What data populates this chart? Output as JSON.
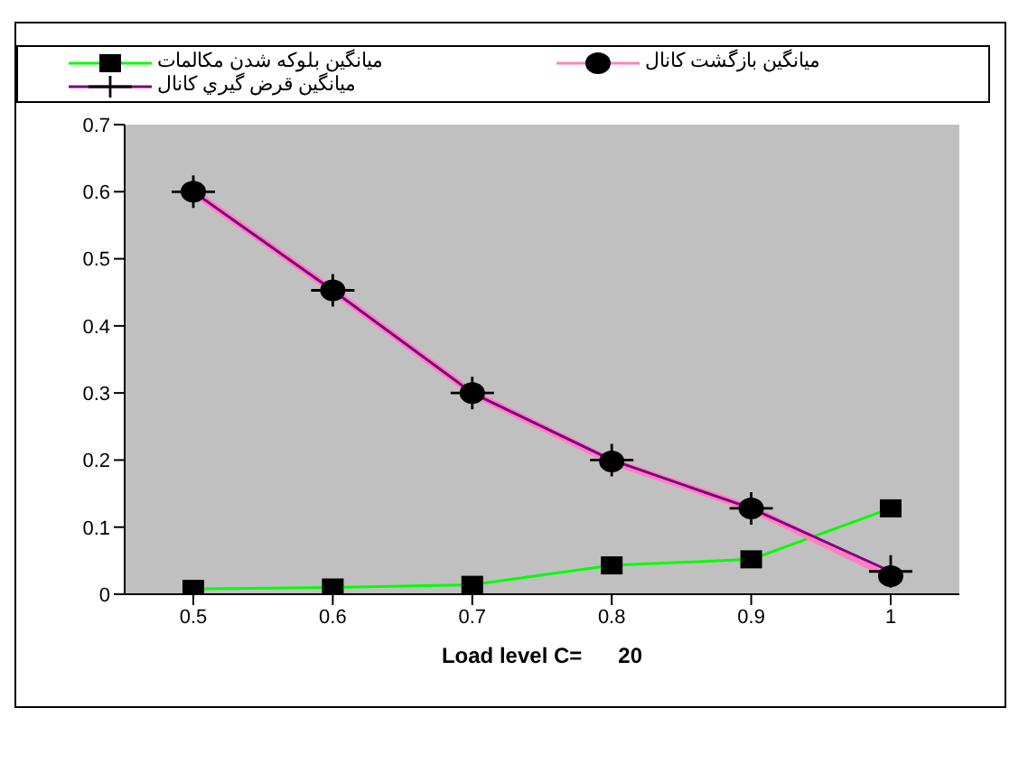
{
  "chart_data": {
    "type": "line",
    "xlabel": "Load level C=      20",
    "categories": [
      "0.5",
      "0.6",
      "0.7",
      "0.8",
      "0.9",
      "1"
    ],
    "series": [
      {
        "name": "میانگین بلوکه شدن مکالمات",
        "color": "#00ff00",
        "marker": "square",
        "values": [
          0.008,
          0.01,
          0.014,
          0.043,
          0.052,
          0.128
        ]
      },
      {
        "name": "میانگین بازگشت کانال",
        "color": "#ff80c0",
        "marker": "circle",
        "values": [
          0.6,
          0.453,
          0.3,
          0.198,
          0.128,
          0.027
        ]
      },
      {
        "name": "میانگین قرض گیري کانال",
        "color": "#800080",
        "marker": "cross",
        "values": [
          0.6,
          0.453,
          0.3,
          0.2,
          0.128,
          0.034
        ]
      }
    ],
    "ylim": [
      0,
      0.7
    ],
    "yticks": [
      0,
      0.1,
      0.2,
      0.3,
      0.4,
      0.5,
      0.6,
      0.7
    ],
    "grid": false,
    "legend": "top",
    "line_style": "solid"
  }
}
